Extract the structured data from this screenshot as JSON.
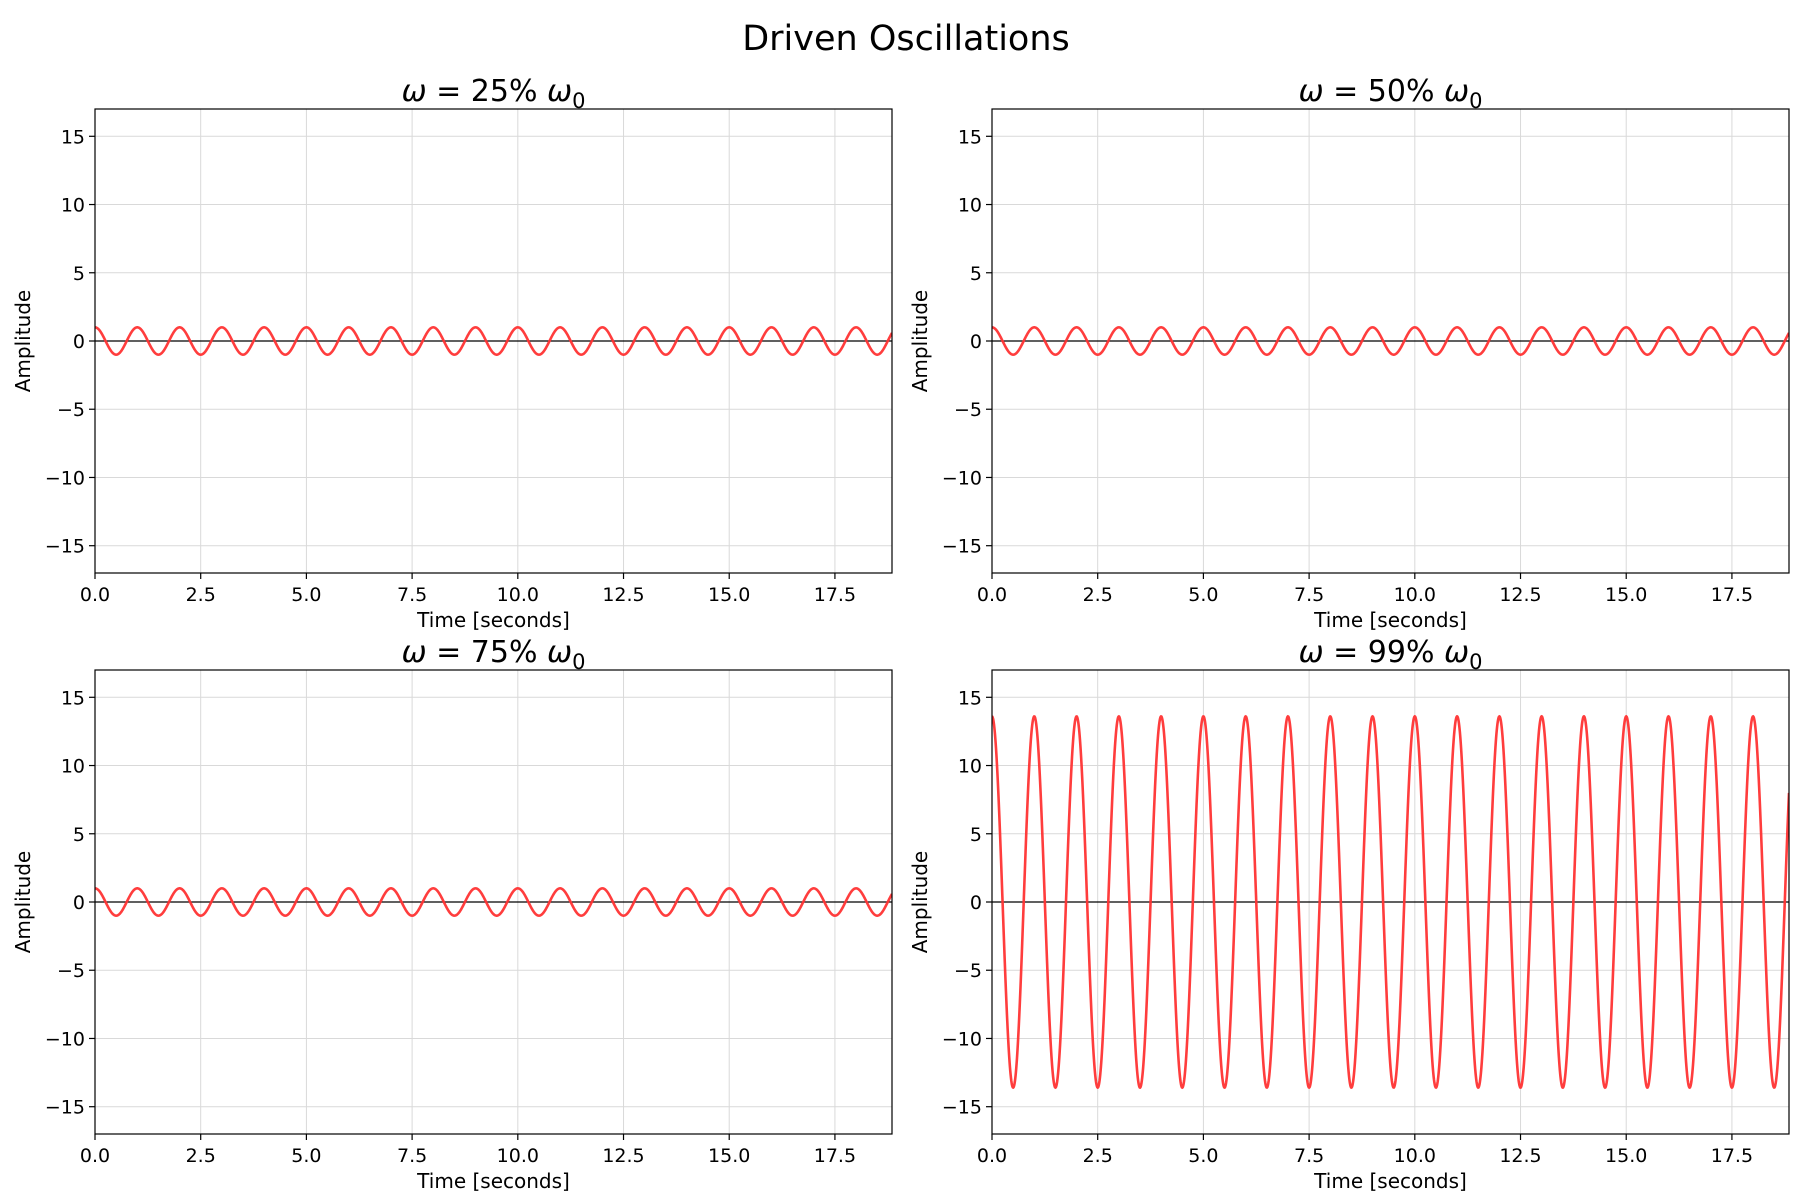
{
  "figure": {
    "title": "Driven Oscillations"
  },
  "colors": {
    "curve": "#ff3333",
    "grid": "#d9d9d9",
    "axis": "#000000",
    "zero_line": "#000000"
  },
  "chart_data": [
    {
      "type": "line",
      "title_prefix": "ω = 25% ω",
      "title_sub": "0",
      "xlabel": "Time [seconds]",
      "ylabel": "Amplitude",
      "xlim": [
        0,
        18.85
      ],
      "ylim": [
        -17,
        17
      ],
      "xticks": [
        "0.0",
        "2.5",
        "5.0",
        "7.5",
        "10.0",
        "12.5",
        "15.0",
        "17.5"
      ],
      "yticks": [
        "−15",
        "−10",
        "−5",
        "0",
        "5",
        "10",
        "15"
      ],
      "grid": true,
      "series": [
        {
          "function": "amplitude*cos(2*pi*t/period)",
          "amplitude": 1.0,
          "period": 1.0
        }
      ]
    },
    {
      "type": "line",
      "title_prefix": "ω = 50% ω",
      "title_sub": "0",
      "xlabel": "Time [seconds]",
      "ylabel": "Amplitude",
      "xlim": [
        0,
        18.85
      ],
      "ylim": [
        -17,
        17
      ],
      "xticks": [
        "0.0",
        "2.5",
        "5.0",
        "7.5",
        "10.0",
        "12.5",
        "15.0",
        "17.5"
      ],
      "yticks": [
        "−15",
        "−10",
        "−5",
        "0",
        "5",
        "10",
        "15"
      ],
      "grid": true,
      "series": [
        {
          "function": "amplitude*cos(2*pi*t/period)",
          "amplitude": 1.0,
          "period": 1.0
        }
      ]
    },
    {
      "type": "line",
      "title_prefix": "ω = 75% ω",
      "title_sub": "0",
      "xlabel": "Time [seconds]",
      "ylabel": "Amplitude",
      "xlim": [
        0,
        18.85
      ],
      "ylim": [
        -17,
        17
      ],
      "xticks": [
        "0.0",
        "2.5",
        "5.0",
        "7.5",
        "10.0",
        "12.5",
        "15.0",
        "17.5"
      ],
      "yticks": [
        "−15",
        "−10",
        "−5",
        "0",
        "5",
        "10",
        "15"
      ],
      "grid": true,
      "series": [
        {
          "function": "amplitude*cos(2*pi*t/period)",
          "amplitude": 1.0,
          "period": 1.0
        }
      ]
    },
    {
      "type": "line",
      "title_prefix": "ω = 99% ω",
      "title_sub": "0",
      "xlabel": "Time [seconds]",
      "ylabel": "Amplitude",
      "xlim": [
        0,
        18.85
      ],
      "ylim": [
        -17,
        17
      ],
      "xticks": [
        "0.0",
        "2.5",
        "5.0",
        "7.5",
        "10.0",
        "12.5",
        "15.0",
        "17.5"
      ],
      "yticks": [
        "−15",
        "−10",
        "−5",
        "0",
        "5",
        "10",
        "15"
      ],
      "grid": true,
      "series": [
        {
          "function": "amplitude*cos(2*pi*t/period)",
          "amplitude": 13.6,
          "period": 1.0
        }
      ]
    }
  ]
}
